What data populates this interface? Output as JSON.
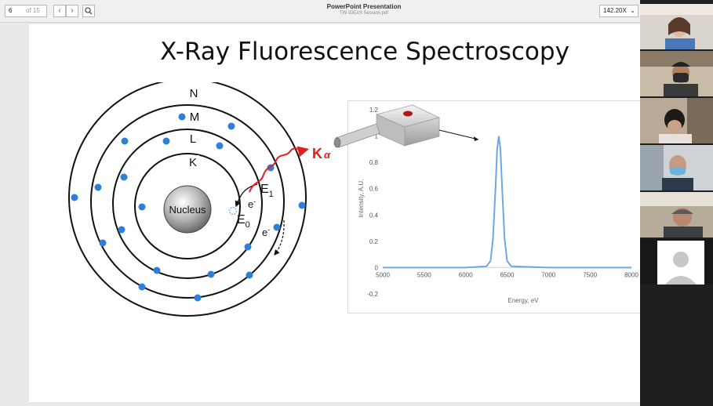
{
  "viewer": {
    "page_current": "6",
    "page_total": "of 15",
    "title": "PowerPoint Presentation",
    "subtitle": "TW IDEAS Session.pdf",
    "zoom": "142.20X",
    "icons": [
      "chevron-left-icon",
      "chevron-right-icon",
      "search-icon",
      "chevron-down-icon"
    ]
  },
  "slide": {
    "title": "X-Ray Fluorescence Spectroscopy",
    "atom": {
      "shells": [
        "N",
        "M",
        "L",
        "K"
      ],
      "nucleus": "Nucleus",
      "electron": "e",
      "electron_superscript": "-",
      "e1": "E",
      "e1_sub": "1",
      "e0": "E",
      "e0_sub": "0",
      "emission": "K",
      "emission_sub": "α",
      "colors": {
        "electron": "#2f7fd8",
        "emission": "#e0201c"
      }
    }
  },
  "chart_data": {
    "type": "line",
    "title": "",
    "xlabel": "Energy, eV",
    "ylabel": "Intensity, A.U.",
    "xlim": [
      5000,
      8000
    ],
    "ylim": [
      -0.2,
      1.2
    ],
    "xticks": [
      "5000",
      "5500",
      "6000",
      "6500",
      "7000",
      "7500",
      "8000"
    ],
    "yticks": [
      "-0.2",
      "0",
      "0.2",
      "0.4",
      "0.6",
      "0.8",
      "1",
      "1.2"
    ],
    "series": [
      {
        "x": [
          5000,
          6000,
          6250,
          6300,
          6330,
          6360,
          6380,
          6400,
          6420,
          6440,
          6470,
          6500,
          6550,
          7000,
          8000
        ],
        "y": [
          0,
          0,
          0.01,
          0.05,
          0.22,
          0.6,
          0.9,
          1.0,
          0.9,
          0.6,
          0.22,
          0.05,
          0.01,
          0,
          0
        ]
      }
    ],
    "grid": false,
    "line_color": "#6fa8e0"
  },
  "participants": [
    "participant-1",
    "participant-2",
    "participant-3",
    "participant-4",
    "participant-5",
    "participant-6"
  ]
}
